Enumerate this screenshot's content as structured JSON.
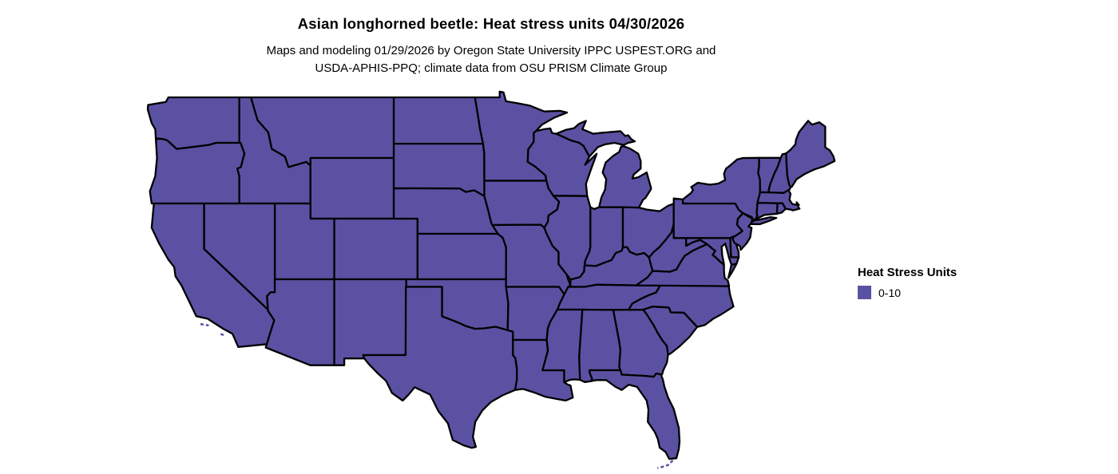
{
  "title": "Asian longhorned beetle: Heat stress units 04/30/2026",
  "subtitle_lines": [
    "Maps and modeling 01/29/2026 by Oregon State University IPPC USPEST.ORG and",
    "USDA-APHIS-PPQ; climate data from OSU PRISM Climate Group"
  ],
  "legend": {
    "title": "Heat Stress Units",
    "items": [
      {
        "label": "0-10",
        "color": "#5b51a3"
      }
    ]
  },
  "map": {
    "fill_color": "#5b51a3",
    "border_color": "#000000"
  }
}
